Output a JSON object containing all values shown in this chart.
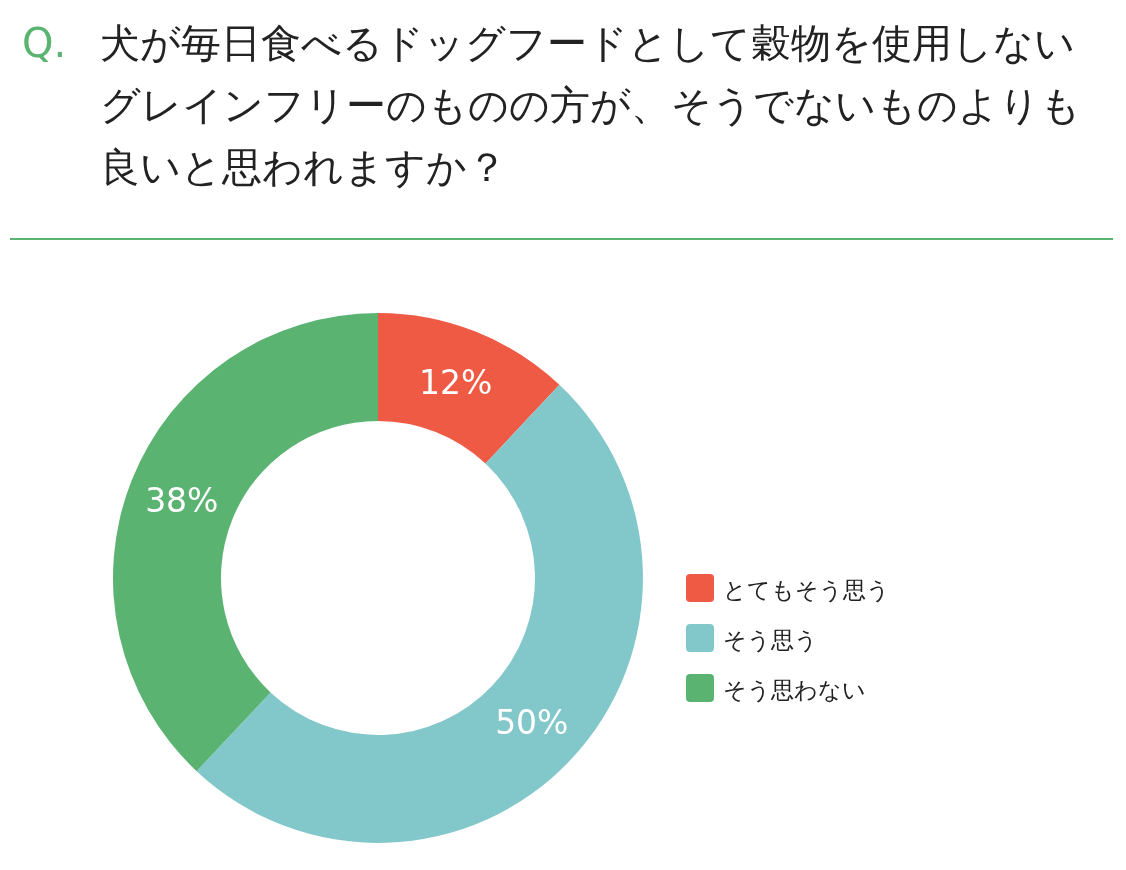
{
  "chart_data": {
    "type": "donut",
    "title": "Q. 犬が毎日食べるドッグフードとして穀物を使用しないグレインフリーのものの方が、そうでないものよりも良いと思われますか？",
    "categories": [
      "とてもそう思う",
      "そう思う",
      "そう思わない"
    ],
    "values": [
      12,
      50,
      38
    ],
    "colors": [
      "#ee5a43",
      "#82c7ca",
      "#5bb372"
    ],
    "value_labels": [
      "12%",
      "50%",
      "38%"
    ],
    "legend": "right"
  }
}
